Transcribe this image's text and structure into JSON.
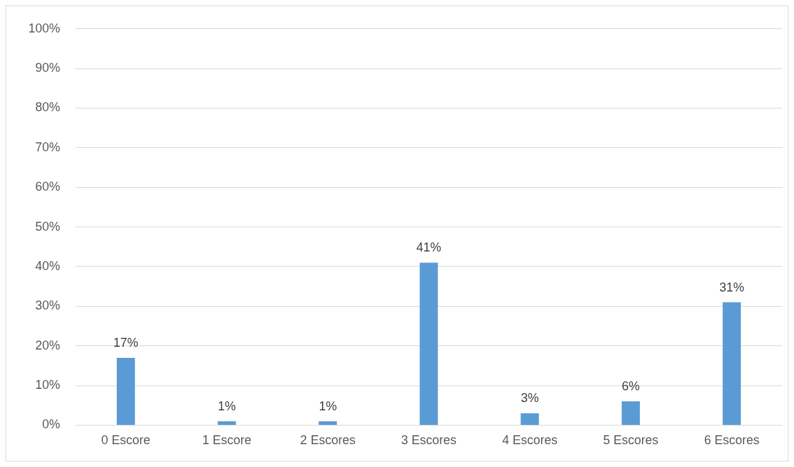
{
  "chart_data": {
    "type": "bar",
    "categories": [
      "0 Escore",
      "1 Escore",
      "2 Escores",
      "3 Escores",
      "4 Escores",
      "5 Escores",
      "6 Escores"
    ],
    "values": [
      17,
      1,
      1,
      41,
      3,
      6,
      31
    ],
    "value_labels": [
      "17%",
      "1%",
      "1%",
      "41%",
      "3%",
      "6%",
      "31%"
    ],
    "color": "#5b9bd5",
    "ylim": [
      0,
      100
    ],
    "yticks": [
      {
        "value": 0,
        "label": "0%"
      },
      {
        "value": 10,
        "label": "10%"
      },
      {
        "value": 20,
        "label": "20%"
      },
      {
        "value": 30,
        "label": "30%"
      },
      {
        "value": 40,
        "label": "40%"
      },
      {
        "value": 50,
        "label": "50%"
      },
      {
        "value": 60,
        "label": "60%"
      },
      {
        "value": 70,
        "label": "70%"
      },
      {
        "value": 80,
        "label": "80%"
      },
      {
        "value": 90,
        "label": "90%"
      },
      {
        "value": 100,
        "label": "100%"
      }
    ],
    "grid": "y",
    "legend": false
  }
}
